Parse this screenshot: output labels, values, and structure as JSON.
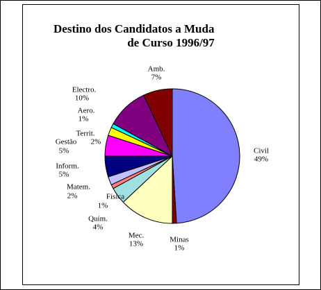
{
  "chart_data": {
    "type": "pie",
    "title": [
      "Destino dos Candidatos a Muda",
      "de Curso 1996/97"
    ],
    "categories": [
      "Civil",
      "Minas",
      "Mec.",
      "Quím.",
      "Física",
      "Matem.",
      "Inform.",
      "Gestão",
      "Territ.",
      "Aero.",
      "Electro.",
      "Amb."
    ],
    "values": [
      49,
      1,
      13,
      4,
      1,
      2,
      5,
      5,
      2,
      1,
      10,
      7
    ],
    "value_labels": [
      "49%",
      "1%",
      "13%",
      "4%",
      "1%",
      "2%",
      "5%",
      "5%",
      "2%",
      "1%",
      "10%",
      "7%"
    ],
    "colors": [
      "#8080ff",
      "#800000",
      "#ffffc0",
      "#a0e0e0",
      "#ff8080",
      "#c0c0ff",
      "#000080",
      "#ff00ff",
      "#ffff00",
      "#00ffff",
      "#800080",
      "#800000"
    ]
  }
}
